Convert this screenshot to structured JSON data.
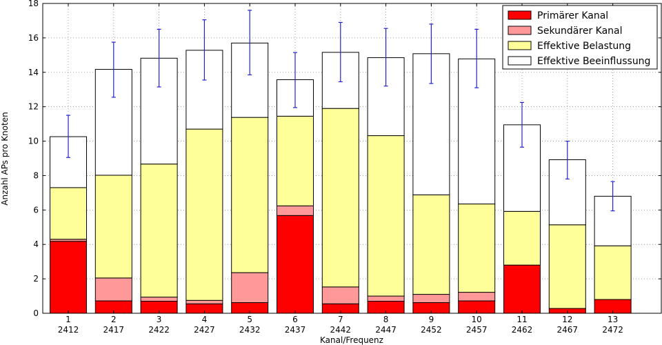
{
  "chart_data": {
    "type": "bar",
    "stacked": true,
    "title": "",
    "xlabel": "Kanal/Frequenz",
    "ylabel": "Anzahl APs pro Knoten",
    "ylim": [
      0,
      18
    ],
    "yticks": [
      0,
      2,
      4,
      6,
      8,
      10,
      12,
      14,
      16,
      18
    ],
    "grid": true,
    "legend_position": "top-right",
    "categories": [
      "1",
      "2",
      "3",
      "4",
      "5",
      "6",
      "7",
      "8",
      "9",
      "10",
      "11",
      "12",
      "13"
    ],
    "frequencies": [
      "2412",
      "2417",
      "2422",
      "2427",
      "2432",
      "2437",
      "2442",
      "2447",
      "2452",
      "2457",
      "2462",
      "2467",
      "2472"
    ],
    "series": [
      {
        "name": "Primärer Kanal",
        "color": "#ff0000",
        "values": [
          4.18,
          0.72,
          0.7,
          0.55,
          0.62,
          5.68,
          0.55,
          0.7,
          0.62,
          0.72,
          2.8,
          0.28,
          0.8
        ]
      },
      {
        "name": "Sekundärer Kanal",
        "color": "#ff9999",
        "values": [
          0.12,
          1.33,
          0.24,
          0.2,
          1.74,
          0.56,
          0.98,
          0.3,
          0.48,
          0.5,
          0.0,
          0.0,
          0.0
        ]
      },
      {
        "name": "Effektive Belastung",
        "color": "#ffff99",
        "values": [
          3.0,
          5.97,
          7.73,
          9.95,
          9.02,
          5.21,
          10.37,
          9.32,
          5.78,
          5.13,
          3.12,
          4.86,
          3.12
        ]
      },
      {
        "name": "Effektive Beeinflussung",
        "color": "#ffffff",
        "values": [
          2.96,
          6.15,
          6.15,
          4.58,
          4.32,
          2.12,
          3.26,
          4.53,
          8.2,
          8.43,
          5.03,
          3.78,
          2.88
        ]
      }
    ],
    "error_bars": {
      "color": "#2222cc",
      "lower": [
        9.05,
        12.55,
        13.15,
        13.55,
        13.85,
        11.95,
        13.45,
        13.2,
        13.35,
        13.1,
        9.65,
        7.8,
        5.95
      ],
      "upper": [
        11.5,
        15.75,
        16.5,
        17.05,
        17.6,
        15.15,
        16.9,
        16.55,
        16.8,
        16.5,
        12.25,
        10.0,
        7.65
      ]
    }
  }
}
